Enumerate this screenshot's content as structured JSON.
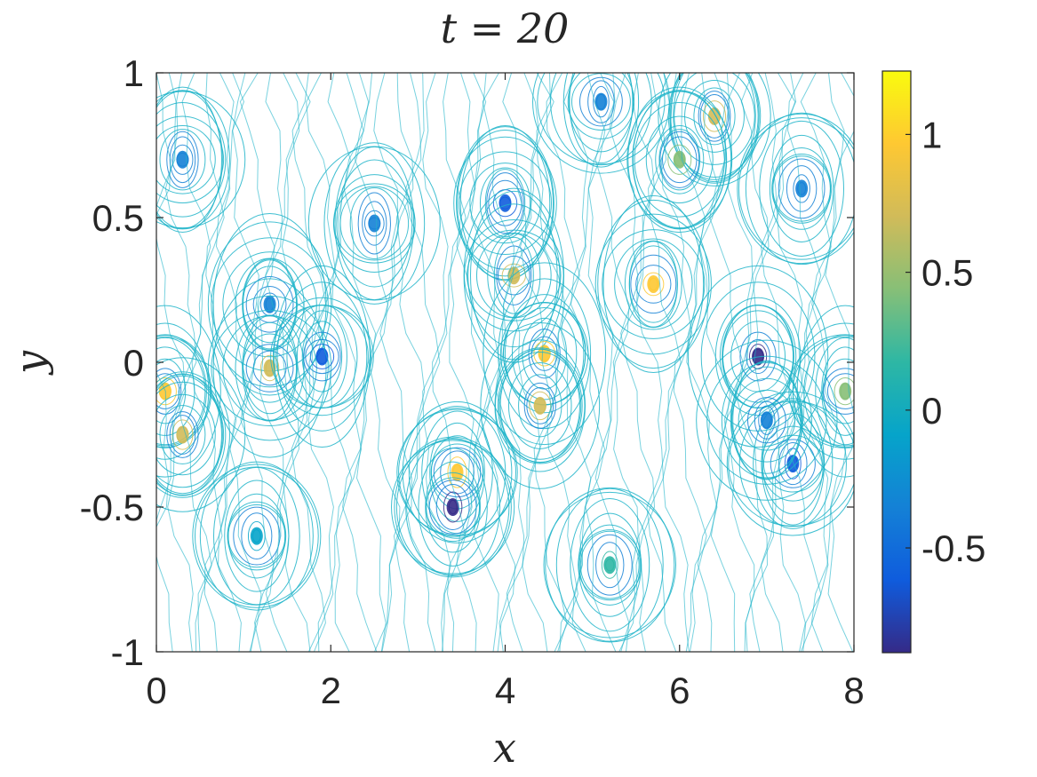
{
  "chart_data": {
    "type": "heatmap",
    "title": "t = 20",
    "xlabel": "x",
    "ylabel": "y",
    "xlim": [
      0,
      8
    ],
    "ylim": [
      -1,
      1
    ],
    "x_ticks": [
      0,
      2,
      4,
      6,
      8
    ],
    "y_ticks": [
      -1,
      -0.5,
      0,
      0.5,
      1
    ],
    "x_tick_labels": [
      "0",
      "2",
      "4",
      "6",
      "8"
    ],
    "y_tick_labels": [
      "-1",
      "-0.5",
      "0",
      "0.5",
      "1"
    ],
    "colorbar": {
      "colormap": "parula",
      "range": [
        -0.88,
        1.23
      ],
      "ticks": [
        -0.5,
        0,
        0.5,
        1
      ],
      "tick_labels": [
        "-0.5",
        "0",
        "0.5",
        "1"
      ]
    },
    "plot_style": "contour lines",
    "grid": false
  },
  "colors": {
    "axis": "#262626",
    "contour_base": "#1fb4c9",
    "parula_stops": [
      "#352a87",
      "#0f5cdd",
      "#1481d6",
      "#06a4ca",
      "#2eb7a4",
      "#87bf77",
      "#d1bb59",
      "#fec832",
      "#f9fb0e"
    ]
  }
}
